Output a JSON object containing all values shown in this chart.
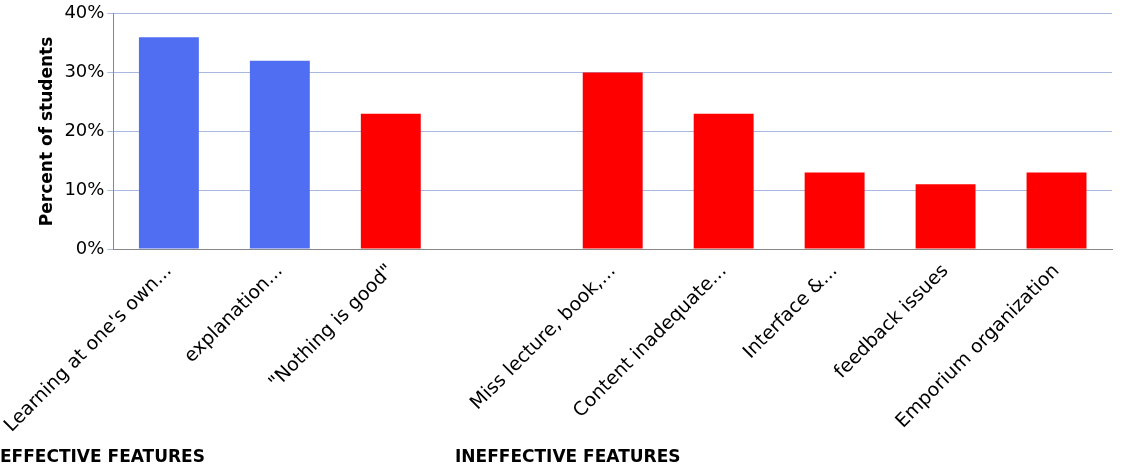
{
  "chart_data": {
    "type": "bar",
    "ylabel": "Percent of students",
    "categories": [
      "Learning at one's own...",
      "explanation...",
      "\"Nothing is good\"",
      null,
      "Miss lecture, book,...",
      "Content inadequate...",
      "Interface &...",
      "feedback issues",
      "Emporium organization"
    ],
    "values": [
      36,
      32,
      23,
      null,
      30,
      23,
      13,
      11,
      13
    ],
    "colors": [
      "#4f6ef2",
      "#4f6ef2",
      "#ff0000",
      "#ff0000",
      "#ff0000",
      "#ff0000",
      "#ff0000",
      "#ff0000",
      "#ff0000"
    ],
    "ylim": [
      0,
      40
    ],
    "yticks": [
      {
        "value": 0,
        "label": "0%"
      },
      {
        "value": 10,
        "label": "10%"
      },
      {
        "value": 20,
        "label": "20%"
      },
      {
        "value": 30,
        "label": "30%"
      },
      {
        "value": 40,
        "label": "40%"
      }
    ],
    "grid": "y",
    "legend": false,
    "annotations": [
      "EFFECTIVE FEATURES",
      "INEFFECTIVE FEATURES"
    ]
  }
}
